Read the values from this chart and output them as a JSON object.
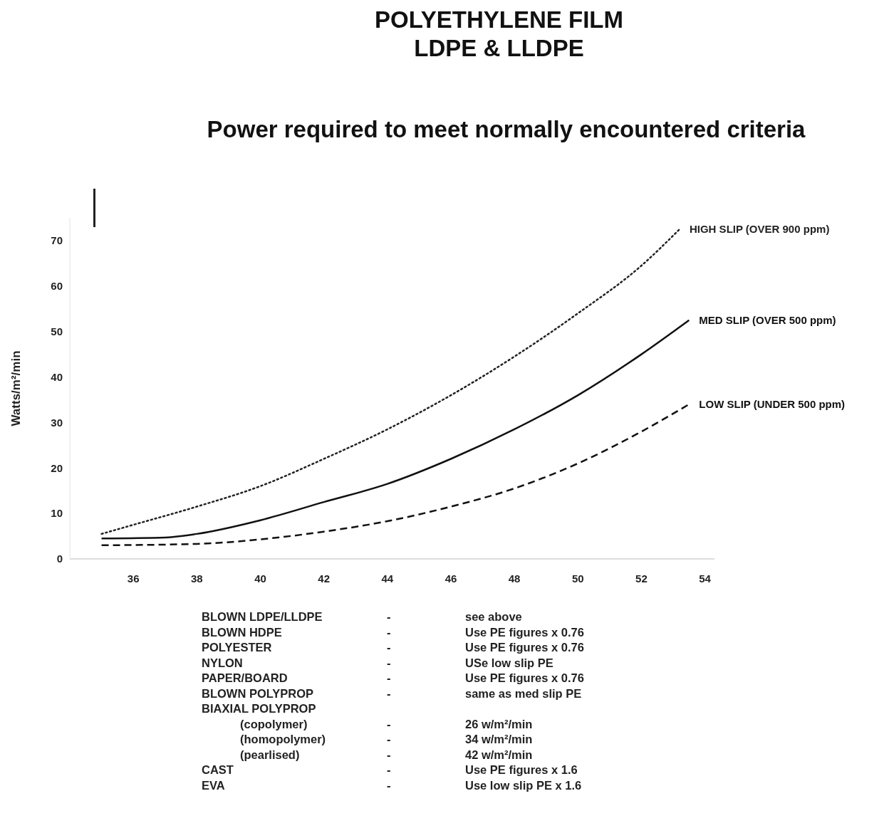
{
  "chart_data": {
    "type": "line",
    "title": "POLYETHYLENE FILM\nLDPE & LLDPE",
    "subtitle": "Power required to meet normally encountered criteria",
    "ylabel": "Watts/m²/min",
    "xlim": [
      34,
      54.3
    ],
    "xticks": [
      36,
      38,
      40,
      42,
      44,
      46,
      48,
      50,
      52,
      54
    ],
    "ylim": [
      0,
      75
    ],
    "yticks": [
      0,
      10,
      20,
      30,
      40,
      50,
      60,
      70
    ],
    "grid": false,
    "legend": false,
    "marker": "none",
    "series": [
      {
        "name": "HIGH SLIP (OVER 900 ppm)",
        "color": "#222222",
        "line_style": "dotted",
        "x": [
          35,
          36,
          38,
          40,
          42,
          44,
          46,
          48,
          50,
          52,
          53.2
        ],
        "values": [
          5.5,
          7.5,
          11.5,
          16,
          22,
          28.5,
          36,
          44.5,
          54,
          64.5,
          72.5
        ]
      },
      {
        "name": "MED SLIP (OVER 500 ppm)",
        "color": "#111111",
        "line_style": "solid",
        "x": [
          35,
          37,
          38,
          40,
          42,
          44,
          46,
          48,
          50,
          52,
          53.5
        ],
        "values": [
          4.5,
          4.7,
          5.5,
          8.5,
          12.5,
          16.5,
          22,
          28.5,
          36,
          45,
          52.5
        ]
      },
      {
        "name": "LOW SLIP (UNDER  500 ppm)",
        "color": "#111111",
        "line_style": "dashed",
        "x": [
          35,
          38,
          40,
          42,
          44,
          46,
          48,
          50,
          52,
          53.5
        ],
        "values": [
          3,
          3.3,
          4.3,
          6,
          8.3,
          11.5,
          15.5,
          21,
          28,
          34
        ]
      }
    ],
    "annotations": [
      "BLOWN LDPE/LLDPE",
      "-",
      "see above",
      "BLOWN HDPE",
      "-",
      "Use PE figures x 0.76",
      "POLYESTER",
      "-",
      "Use PE figures x 0.76",
      "NYLON",
      "-",
      "USe low slip PE",
      "PAPER/BOARD",
      "-",
      "Use PE figures x 0.76",
      "BLOWN POLYPROP",
      "-",
      "same as med slip PE",
      "BIAXIAL POLYPROP",
      "(copolymer)",
      "-",
      "26 w/m²/min",
      "(homopolymer)",
      "-",
      "34 w/m²/min",
      "(pearlised)",
      "-",
      "42 w/m²/min",
      "CAST",
      "-",
      "Use PE figures x 1.6",
      "EVA",
      "-",
      "Use low slip PE x 1.6"
    ]
  }
}
